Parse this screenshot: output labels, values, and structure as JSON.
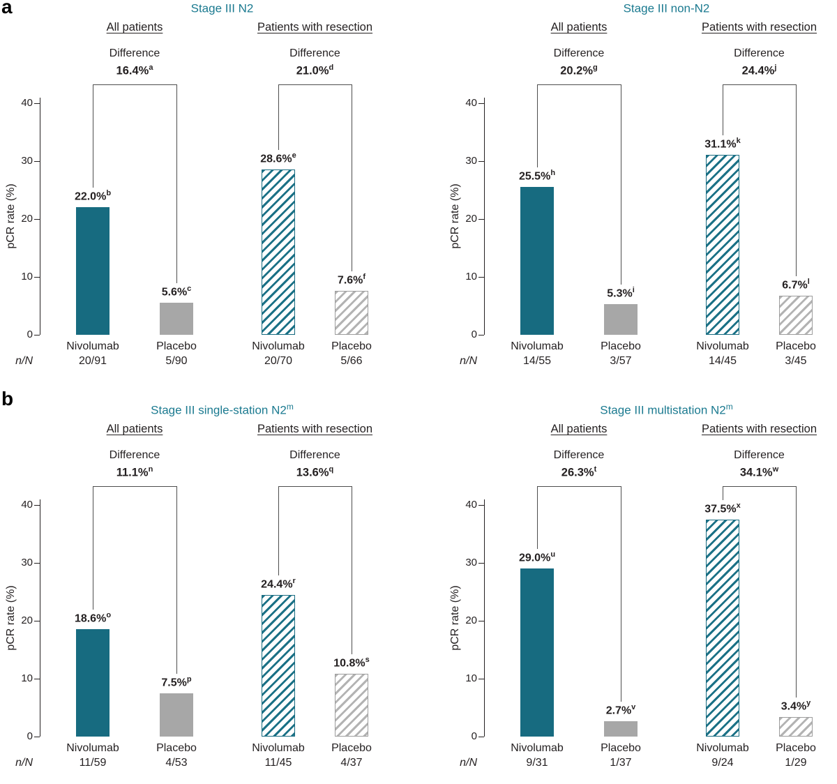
{
  "panels": [
    {
      "letter": "a"
    },
    {
      "letter": "b"
    }
  ],
  "nN_label": "n/N",
  "yticks": [
    0,
    10,
    20,
    30,
    40
  ],
  "colors": {
    "teal": "#176b80",
    "gray": "#a7a7a7",
    "title_teal": "#1b7a90"
  },
  "chart_data": [
    {
      "type": "bar",
      "title": "Stage III N2",
      "title_sup": "",
      "ylabel": "pCR rate (%)",
      "ylim": [
        0,
        43
      ],
      "grid": false,
      "groups": [
        {
          "header": "All patients",
          "difference": {
            "label": "Difference",
            "value": "16.4%",
            "sup": "a"
          },
          "bars": [
            {
              "category": "Nivolumab",
              "nN": "20/91",
              "value": 22.0,
              "label": "22.0%",
              "sup": "b",
              "style": "teal-solid"
            },
            {
              "category": "Placebo",
              "nN": "5/90",
              "value": 5.6,
              "label": "5.6%",
              "sup": "c",
              "style": "gray-solid"
            }
          ]
        },
        {
          "header": "Patients with resection",
          "difference": {
            "label": "Difference",
            "value": "21.0%",
            "sup": "d"
          },
          "bars": [
            {
              "category": "Nivolumab",
              "nN": "20/70",
              "value": 28.6,
              "label": "28.6%",
              "sup": "e",
              "style": "teal-hatch"
            },
            {
              "category": "Placebo",
              "nN": "5/66",
              "value": 7.6,
              "label": "7.6%",
              "sup": "f",
              "style": "gray-hatch"
            }
          ]
        }
      ]
    },
    {
      "type": "bar",
      "title": "Stage III non-N2",
      "title_sup": "",
      "ylabel": "pCR rate (%)",
      "ylim": [
        0,
        43
      ],
      "grid": false,
      "groups": [
        {
          "header": "All patients",
          "difference": {
            "label": "Difference",
            "value": "20.2%",
            "sup": "g"
          },
          "bars": [
            {
              "category": "Nivolumab",
              "nN": "14/55",
              "value": 25.5,
              "label": "25.5%",
              "sup": "h",
              "style": "teal-solid"
            },
            {
              "category": "Placebo",
              "nN": "3/57",
              "value": 5.3,
              "label": "5.3%",
              "sup": "i",
              "style": "gray-solid"
            }
          ]
        },
        {
          "header": "Patients with resection",
          "difference": {
            "label": "Difference",
            "value": "24.4%",
            "sup": "j"
          },
          "bars": [
            {
              "category": "Nivolumab",
              "nN": "14/45",
              "value": 31.1,
              "label": "31.1%",
              "sup": "k",
              "style": "teal-hatch"
            },
            {
              "category": "Placebo",
              "nN": "3/45",
              "value": 6.7,
              "label": "6.7%",
              "sup": "l",
              "style": "gray-hatch"
            }
          ]
        }
      ]
    },
    {
      "type": "bar",
      "title": "Stage III single-station N2",
      "title_sup": "m",
      "ylabel": "pCR rate (%)",
      "ylim": [
        0,
        43
      ],
      "grid": false,
      "groups": [
        {
          "header": "All patients",
          "difference": {
            "label": "Difference",
            "value": "11.1%",
            "sup": "n"
          },
          "bars": [
            {
              "category": "Nivolumab",
              "nN": "11/59",
              "value": 18.6,
              "label": "18.6%",
              "sup": "o",
              "style": "teal-solid"
            },
            {
              "category": "Placebo",
              "nN": "4/53",
              "value": 7.5,
              "label": "7.5%",
              "sup": "p",
              "style": "gray-solid"
            }
          ]
        },
        {
          "header": "Patients with resection",
          "difference": {
            "label": "Difference",
            "value": "13.6%",
            "sup": "q"
          },
          "bars": [
            {
              "category": "Nivolumab",
              "nN": "11/45",
              "value": 24.4,
              "label": "24.4%",
              "sup": "r",
              "style": "teal-hatch"
            },
            {
              "category": "Placebo",
              "nN": "4/37",
              "value": 10.8,
              "label": "10.8%",
              "sup": "s",
              "style": "gray-hatch"
            }
          ]
        }
      ]
    },
    {
      "type": "bar",
      "title": "Stage III multistation N2",
      "title_sup": "m",
      "ylabel": "pCR rate (%)",
      "ylim": [
        0,
        43
      ],
      "grid": false,
      "groups": [
        {
          "header": "All patients",
          "difference": {
            "label": "Difference",
            "value": "26.3%",
            "sup": "t"
          },
          "bars": [
            {
              "category": "Nivolumab",
              "nN": "9/31",
              "value": 29.0,
              "label": "29.0%",
              "sup": "u",
              "style": "teal-solid"
            },
            {
              "category": "Placebo",
              "nN": "1/37",
              "value": 2.7,
              "label": "2.7%",
              "sup": "v",
              "style": "gray-solid"
            }
          ]
        },
        {
          "header": "Patients with resection",
          "difference": {
            "label": "Difference",
            "value": "34.1%",
            "sup": "w"
          },
          "bars": [
            {
              "category": "Nivolumab",
              "nN": "9/24",
              "value": 37.5,
              "label": "37.5%",
              "sup": "x",
              "style": "teal-hatch"
            },
            {
              "category": "Placebo",
              "nN": "1/29",
              "value": 3.4,
              "label": "3.4%",
              "sup": "y",
              "style": "gray-hatch"
            }
          ]
        }
      ]
    }
  ]
}
